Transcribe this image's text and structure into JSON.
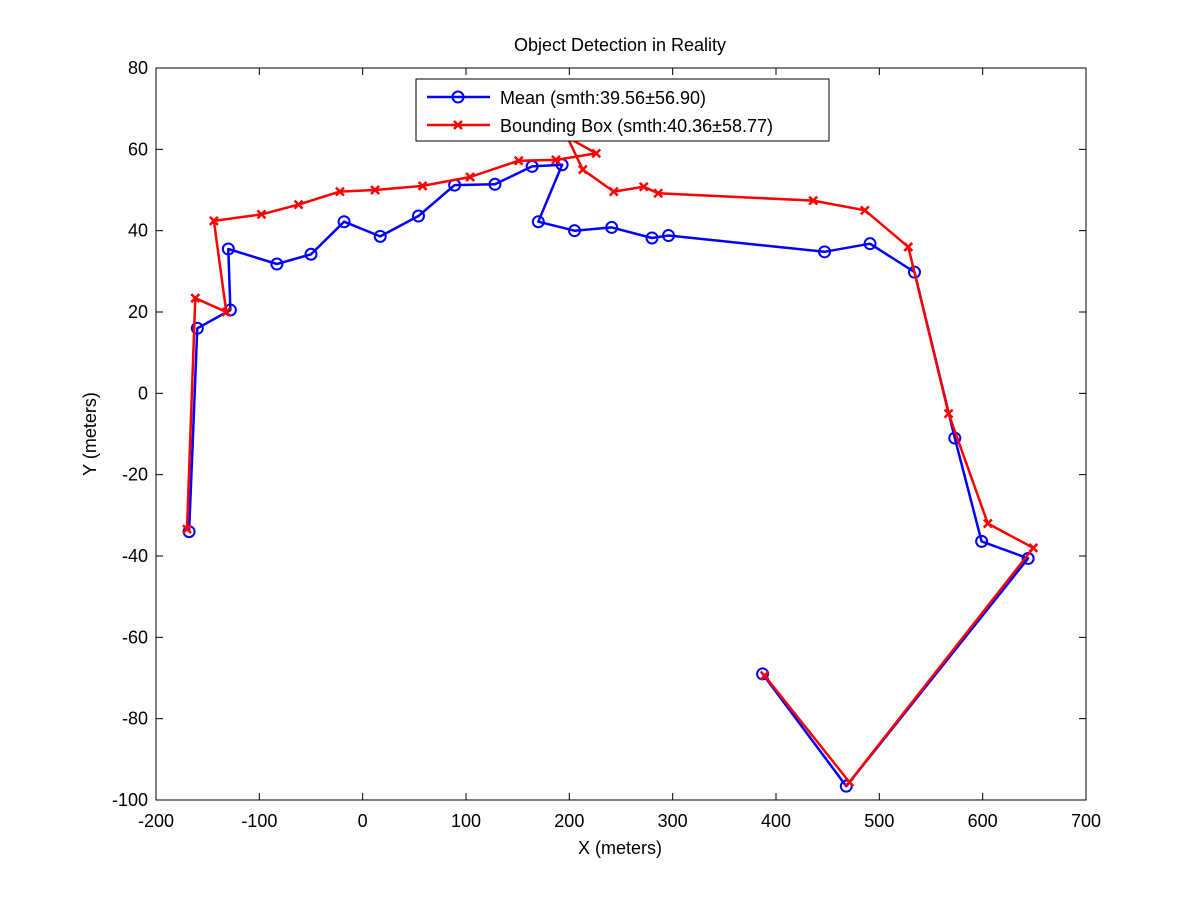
{
  "chart_data": {
    "type": "line",
    "title": "Object Detection in Reality",
    "xlabel": "X (meters)",
    "ylabel": "Y (meters)",
    "xlim": [
      -200,
      700
    ],
    "ylim": [
      -100,
      80
    ],
    "xticks": [
      -200,
      -100,
      0,
      100,
      200,
      300,
      400,
      500,
      600,
      700
    ],
    "yticks": [
      -100,
      -80,
      -60,
      -40,
      -20,
      0,
      20,
      40,
      60,
      80
    ],
    "grid": false,
    "legend_position": "top-center",
    "series": [
      {
        "name": "Mean (smth:39.56±56.90)",
        "color": "#0000ff",
        "marker": "circle",
        "points": [
          [
            -168,
            -34
          ],
          [
            -160,
            16
          ],
          [
            -128,
            20.5
          ],
          [
            -130,
            35.5
          ],
          [
            -83,
            31.8
          ],
          [
            -50,
            34.2
          ],
          [
            -18,
            42.2
          ],
          [
            17,
            38.6
          ],
          [
            54,
            43.6
          ],
          [
            89,
            51.2
          ],
          [
            128,
            51.4
          ],
          [
            164,
            55.8
          ],
          [
            193,
            56.2
          ],
          [
            170,
            42.2
          ],
          [
            205,
            40
          ],
          [
            241,
            40.8
          ],
          [
            280,
            38.2
          ],
          [
            296,
            38.8
          ],
          [
            447,
            34.8
          ],
          [
            491,
            36.8
          ],
          [
            534,
            29.8
          ],
          [
            573,
            -11
          ],
          [
            599,
            -36.4
          ],
          [
            644,
            -40.6
          ],
          [
            468,
            -96.6
          ],
          [
            387,
            -69
          ]
        ]
      },
      {
        "name": "Bounding Box (smth:40.36±58.77)",
        "color": "#ff0000",
        "marker": "x",
        "points": [
          [
            -170,
            -33.4
          ],
          [
            -162,
            23.4
          ],
          [
            -132,
            20
          ],
          [
            -144,
            42.4
          ],
          [
            -98,
            44
          ],
          [
            -62,
            46.4
          ],
          [
            -22,
            49.6
          ],
          [
            12,
            50
          ],
          [
            58,
            51
          ],
          [
            104,
            53.2
          ],
          [
            151,
            57.2
          ],
          [
            187,
            57.4
          ],
          [
            226,
            59
          ],
          [
            198,
            63
          ],
          [
            213,
            55
          ],
          [
            243,
            49.6
          ],
          [
            272,
            50.8
          ],
          [
            286,
            49.2
          ],
          [
            436,
            47.4
          ],
          [
            486,
            45
          ],
          [
            528,
            36
          ],
          [
            567,
            -5
          ],
          [
            605,
            -32
          ],
          [
            649,
            -38
          ],
          [
            471,
            -95.6
          ],
          [
            389,
            -69.4
          ]
        ]
      }
    ]
  }
}
